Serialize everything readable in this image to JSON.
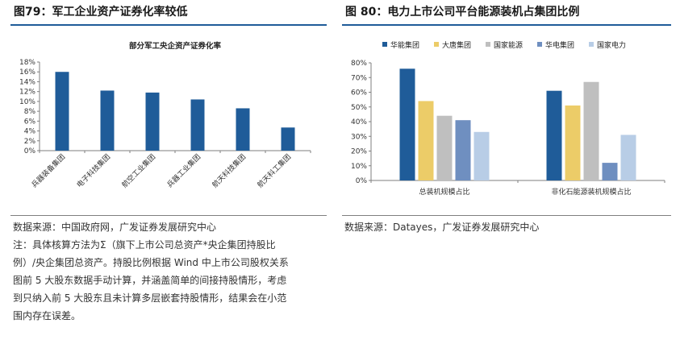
{
  "left": {
    "figure_title": "图79：军工企业资产证券化率较低",
    "source": "数据来源：中国政府网，广发证券发展研究中心",
    "note_lines": [
      "注：具体核算方法为Σ（旗下上市公司总资产*央企集团持股比",
      "例）/央企集团总资产。持股比例根据 Wind 中上市公司股权关系",
      "图前 5 大股东数据手动计算，并涵盖简单的间接持股情形，考虑",
      "到只纳入前 5 大股东且未计算多层嵌套持股情形，结果会在小范",
      "围内存在误差。"
    ]
  },
  "right": {
    "figure_title": "图 80：电力上市公司平台能源装机占集团比例",
    "source": "数据来源：Datayes，广发证券发展研究中心"
  },
  "chart_data": [
    {
      "type": "bar",
      "title": "部分军工央企资产证券化率",
      "xlabel": "",
      "ylabel": "",
      "categories": [
        "兵器装备集团",
        "电子科技集团",
        "航空工业集团",
        "兵器工业集团",
        "航天科技集团",
        "航天科工集团"
      ],
      "values": [
        16.0,
        12.2,
        11.8,
        10.4,
        8.6,
        4.7
      ],
      "ylim": [
        0,
        18
      ],
      "yticks": [
        "0%",
        "2%",
        "4%",
        "6%",
        "8%",
        "10%",
        "12%",
        "14%",
        "16%",
        "18%"
      ],
      "color": "#1f5c99",
      "grid": false
    },
    {
      "type": "bar",
      "title": "",
      "xlabel": "",
      "ylabel": "",
      "categories": [
        "总装机规模占比",
        "非化石能源装机规模占比"
      ],
      "series": [
        {
          "name": "华能集团",
          "values": [
            76,
            61
          ],
          "color": "#1f5c99"
        },
        {
          "name": "大唐集团",
          "values": [
            54,
            51
          ],
          "color": "#eccc68"
        },
        {
          "name": "国家能源",
          "values": [
            44,
            67
          ],
          "color": "#bfbfbf"
        },
        {
          "name": "华电集团",
          "values": [
            41,
            12
          ],
          "color": "#6f8fc0"
        },
        {
          "name": "国家电力",
          "values": [
            33,
            31
          ],
          "color": "#b8cde6"
        }
      ],
      "ylim": [
        0,
        80
      ],
      "yticks": [
        "0%",
        "10%",
        "20%",
        "30%",
        "40%",
        "50%",
        "60%",
        "70%",
        "80%"
      ],
      "legend": "top",
      "grid": false
    }
  ]
}
